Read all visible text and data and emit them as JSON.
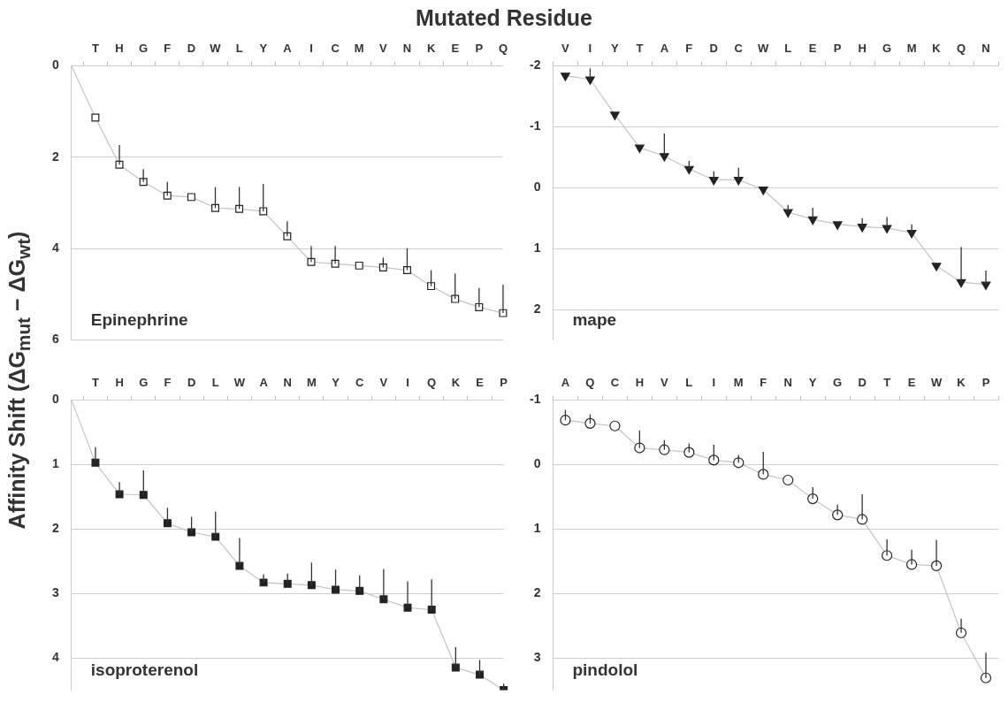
{
  "chart_data": [
    {
      "type": "line",
      "title": "Mutated Residue",
      "ylabel": "Affinity Shift (ΔG$_{mut}$ − ΔG$_{wt}$)",
      "categories": [
        null,
        "T",
        "H",
        "G",
        "F",
        "D",
        "W",
        "L",
        "Y",
        "A",
        "I",
        "C",
        "M",
        "V",
        "N",
        "K",
        "E",
        "P",
        "Q"
      ],
      "ylim": [
        6,
        0
      ],
      "yticks": [
        0,
        2,
        4,
        6
      ],
      "grid": "y",
      "marker": "square",
      "legend": false,
      "series": [
        {
          "name": "Epinephrine",
          "color": "#ffffff",
          "values": [
            0,
            1.13,
            2.16,
            2.54,
            2.84,
            2.87,
            3.11,
            3.13,
            3.18,
            3.73,
            4.29,
            4.33,
            4.37,
            4.41,
            4.47,
            4.82,
            5.1,
            5.28,
            5.41
          ],
          "errors": [
            null,
            null,
            [
              1.73,
              2.16
            ],
            [
              2.26,
              2.54
            ],
            [
              2.54,
              2.84
            ],
            null,
            [
              2.65,
              3.11
            ],
            [
              2.65,
              3.13
            ],
            [
              2.58,
              3.18
            ],
            [
              3.4,
              3.73
            ],
            [
              3.94,
              4.29
            ],
            [
              3.94,
              4.33
            ],
            null,
            [
              4.2,
              4.41
            ],
            [
              3.99,
              4.47
            ],
            [
              4.47,
              4.82
            ],
            [
              4.54,
              5.1
            ],
            [
              4.86,
              5.28
            ],
            [
              4.79,
              5.41
            ]
          ]
        }
      ]
    },
    {
      "type": "line",
      "categories": [
        "V",
        "I",
        "Y",
        "T",
        "A",
        "F",
        "D",
        "C",
        "W",
        "L",
        "E",
        "P",
        "H",
        "G",
        "M",
        "K",
        "Q",
        "N"
      ],
      "ylim": [
        2.5,
        -2
      ],
      "yticks": [
        -2,
        -1,
        0,
        1,
        2
      ],
      "grid": "y",
      "marker": "triangle",
      "legend": false,
      "series": [
        {
          "name": "mape",
          "color": "#222222",
          "values": [
            -1.84,
            -1.78,
            -1.2,
            -0.66,
            -0.52,
            -0.31,
            -0.13,
            -0.13,
            0.03,
            0.4,
            0.52,
            0.6,
            0.64,
            0.66,
            0.74,
            1.28,
            1.55,
            1.59
          ],
          "errors": [
            null,
            [
              -1.96,
              -1.78
            ],
            null,
            null,
            [
              -0.89,
              -0.52
            ],
            [
              -0.44,
              -0.31
            ],
            [
              -0.27,
              -0.13
            ],
            [
              -0.33,
              -0.13
            ],
            null,
            [
              0.28,
              0.4
            ],
            [
              0.33,
              0.52
            ],
            null,
            [
              0.5,
              0.64
            ],
            [
              0.48,
              0.66
            ],
            [
              0.6,
              0.74
            ],
            null,
            [
              0.97,
              1.55
            ],
            [
              1.36,
              1.59
            ]
          ]
        }
      ]
    },
    {
      "type": "line",
      "categories": [
        null,
        "T",
        "H",
        "G",
        "F",
        "D",
        "L",
        "W",
        "A",
        "N",
        "M",
        "Y",
        "C",
        "V",
        "I",
        "Q",
        "K",
        "E",
        "P"
      ],
      "ylim": [
        4.5,
        0
      ],
      "yticks": [
        0,
        1,
        2,
        3,
        4
      ],
      "grid": "y",
      "marker": "square",
      "legend": false,
      "series": [
        {
          "name": "isoproterenol",
          "color": "#222222",
          "values": [
            0,
            0.97,
            1.46,
            1.47,
            1.91,
            2.05,
            2.12,
            2.57,
            2.83,
            2.85,
            2.87,
            2.94,
            2.96,
            3.09,
            3.22,
            3.25,
            4.15,
            4.26,
            4.5
          ],
          "errors": [
            null,
            [
              0.73,
              0.97
            ],
            [
              1.27,
              1.46
            ],
            [
              1.09,
              1.47
            ],
            [
              1.67,
              1.91
            ],
            [
              1.81,
              2.05
            ],
            [
              1.73,
              2.12
            ],
            [
              2.14,
              2.57
            ],
            [
              2.7,
              2.83
            ],
            [
              2.69,
              2.85
            ],
            [
              2.52,
              2.87
            ],
            [
              2.63,
              2.94
            ],
            [
              2.72,
              2.96
            ],
            [
              2.62,
              3.09
            ],
            [
              2.81,
              3.22
            ],
            [
              2.78,
              3.25
            ],
            [
              3.83,
              4.15
            ],
            [
              4.03,
              4.26
            ],
            [
              4.4,
              4.5
            ]
          ]
        }
      ]
    },
    {
      "type": "line",
      "categories": [
        "A",
        "Q",
        "C",
        "H",
        "V",
        "L",
        "I",
        "M",
        "F",
        "N",
        "Y",
        "G",
        "D",
        "T",
        "E",
        "W",
        "K",
        "P"
      ],
      "ylim": [
        3.5,
        -1
      ],
      "yticks": [
        -1,
        0,
        1,
        2,
        3
      ],
      "grid": "y",
      "marker": "circle",
      "legend": false,
      "series": [
        {
          "name": "pindolol",
          "color": "#ffffff",
          "values": [
            -0.69,
            -0.64,
            -0.6,
            -0.26,
            -0.23,
            -0.19,
            -0.07,
            -0.03,
            0.15,
            0.24,
            0.53,
            0.78,
            0.85,
            1.41,
            1.55,
            1.57,
            2.61,
            3.31
          ],
          "errors": [
            [
              -0.85,
              -0.69
            ],
            [
              -0.78,
              -0.64
            ],
            null,
            [
              -0.53,
              -0.26
            ],
            [
              -0.38,
              -0.23
            ],
            [
              -0.33,
              -0.19
            ],
            [
              -0.31,
              -0.07
            ],
            [
              -0.15,
              -0.03
            ],
            [
              -0.2,
              0.15
            ],
            null,
            [
              0.35,
              0.53
            ],
            [
              0.62,
              0.78
            ],
            [
              0.46,
              0.85
            ],
            [
              1.16,
              1.41
            ],
            [
              1.32,
              1.55
            ],
            [
              1.17,
              1.57
            ],
            [
              2.39,
              2.61
            ],
            [
              2.92,
              3.31
            ]
          ]
        }
      ]
    }
  ]
}
